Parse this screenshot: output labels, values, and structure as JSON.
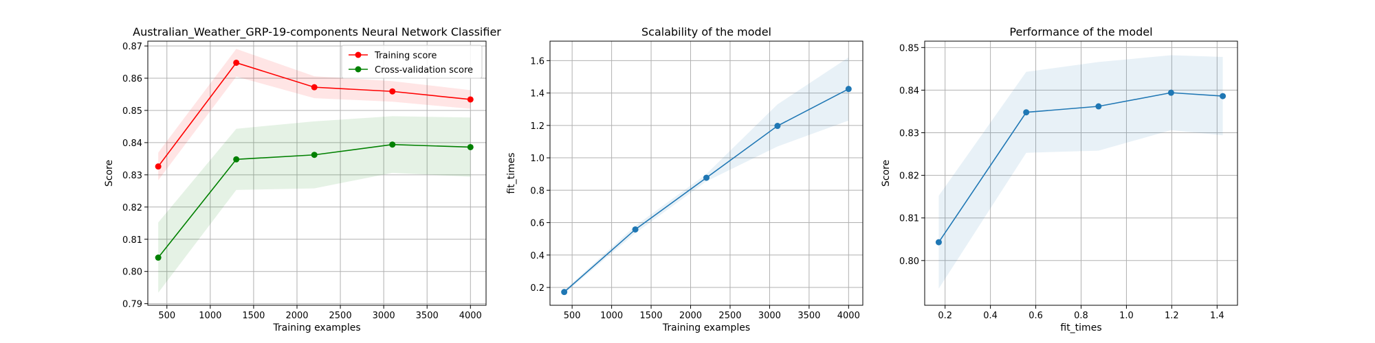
{
  "chart_data": [
    {
      "type": "line",
      "title": "Australian_Weather_GRP-19-components Neural Network Classifier",
      "xlabel": "Training examples",
      "ylabel": "Score",
      "xlim": [
        280,
        4180
      ],
      "ylim": [
        0.7895,
        0.8715
      ],
      "xticks": [
        500,
        1000,
        1500,
        2000,
        2500,
        3000,
        3500,
        4000
      ],
      "yticks": [
        0.79,
        0.8,
        0.81,
        0.82,
        0.83,
        0.84,
        0.85,
        0.86,
        0.87
      ],
      "ytick_labels": [
        "0.79",
        "0.80",
        "0.81",
        "0.82",
        "0.83",
        "0.84",
        "0.85",
        "0.86",
        "0.87"
      ],
      "grid": true,
      "legend": "upper right",
      "x": [
        400,
        1300,
        2200,
        3100,
        4000
      ],
      "series": [
        {
          "name": "Training score",
          "color": "#ff0000",
          "band_color": "#ff0000",
          "values": [
            0.8326,
            0.8648,
            0.8572,
            0.8559,
            0.8534
          ],
          "lower": [
            0.8283,
            0.8605,
            0.8538,
            0.8527,
            0.8505
          ],
          "upper": [
            0.8369,
            0.8691,
            0.8606,
            0.8591,
            0.8563
          ]
        },
        {
          "name": "Cross-validation score",
          "color": "#008000",
          "band_color": "#008000",
          "values": [
            0.8043,
            0.8348,
            0.8362,
            0.8394,
            0.8386
          ],
          "lower": [
            0.7934,
            0.8253,
            0.8258,
            0.8306,
            0.8294
          ],
          "upper": [
            0.8152,
            0.8443,
            0.8466,
            0.8482,
            0.8478
          ]
        }
      ]
    },
    {
      "type": "line",
      "title": "Scalability of the model",
      "xlabel": "Training examples",
      "ylabel": "fit_times",
      "xlim": [
        220,
        4180
      ],
      "ylim": [
        0.09,
        1.72
      ],
      "xticks": [
        500,
        1000,
        1500,
        2000,
        2500,
        3000,
        3500,
        4000
      ],
      "yticks": [
        0.2,
        0.4,
        0.6,
        0.8,
        1.0,
        1.2,
        1.4,
        1.6
      ],
      "ytick_labels": [
        "0.2",
        "0.4",
        "0.6",
        "0.8",
        "1.0",
        "1.2",
        "1.4",
        "1.6"
      ],
      "grid": true,
      "x": [
        400,
        1300,
        2200,
        3100,
        4000
      ],
      "series": [
        {
          "color": "#1f77b4",
          "band_color": "#1f77b4",
          "values": [
            0.172,
            0.558,
            0.877,
            1.197,
            1.425
          ],
          "lower": [
            0.162,
            0.535,
            0.855,
            1.07,
            1.23
          ],
          "upper": [
            0.182,
            0.58,
            0.9,
            1.33,
            1.62
          ]
        }
      ]
    },
    {
      "type": "line",
      "title": "Performance of the model",
      "xlabel": "fit_times",
      "ylabel": "Score",
      "xlim": [
        0.11,
        1.49
      ],
      "ylim": [
        0.7895,
        0.8515
      ],
      "xticks": [
        0.2,
        0.4,
        0.6,
        0.8,
        1.0,
        1.2,
        1.4
      ],
      "xtick_labels": [
        "0.2",
        "0.4",
        "0.6",
        "0.8",
        "1.0",
        "1.2",
        "1.4"
      ],
      "yticks": [
        0.8,
        0.81,
        0.82,
        0.83,
        0.84,
        0.85
      ],
      "ytick_labels": [
        "0.80",
        "0.81",
        "0.82",
        "0.83",
        "0.84",
        "0.85"
      ],
      "grid": true,
      "x": [
        0.172,
        0.558,
        0.877,
        1.197,
        1.425
      ],
      "series": [
        {
          "color": "#1f77b4",
          "band_color": "#1f77b4",
          "values": [
            0.8043,
            0.8348,
            0.8362,
            0.8394,
            0.8386
          ],
          "lower": [
            0.7934,
            0.8253,
            0.8258,
            0.8306,
            0.8294
          ],
          "upper": [
            0.8152,
            0.8443,
            0.8466,
            0.8482,
            0.8478
          ]
        }
      ]
    }
  ]
}
